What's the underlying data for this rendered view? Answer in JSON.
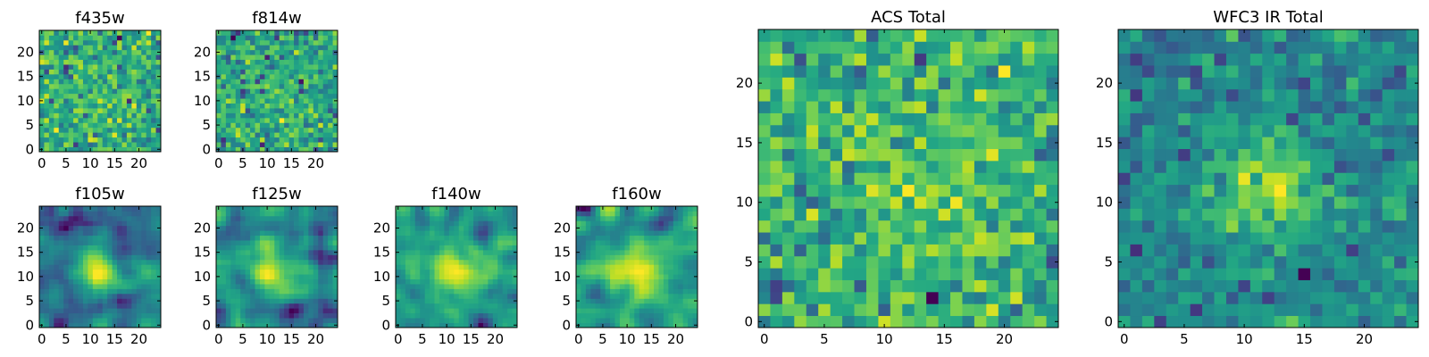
{
  "chart_data": [
    {
      "type": "heatmap",
      "title": "f435w",
      "colormap": "viridis",
      "grid_size": 25,
      "xticks": [
        "0",
        "5",
        "10",
        "15",
        "20"
      ],
      "yticks": [
        "0",
        "5",
        "10",
        "15",
        "20"
      ],
      "xlim": [
        0,
        25
      ],
      "ylim": [
        0,
        25
      ],
      "grid": false,
      "texture": "noise",
      "peak_strength": 0.1,
      "seed": 11
    },
    {
      "type": "heatmap",
      "title": "f814w",
      "colormap": "viridis",
      "grid_size": 25,
      "xticks": [
        "0",
        "5",
        "10",
        "15",
        "20"
      ],
      "yticks": [
        "0",
        "5",
        "10",
        "15",
        "20"
      ],
      "xlim": [
        0,
        25
      ],
      "ylim": [
        0,
        25
      ],
      "grid": false,
      "texture": "noise",
      "peak_strength": 0.1,
      "seed": 23
    },
    {
      "type": "heatmap",
      "title": "f105w",
      "colormap": "viridis",
      "grid_size": 25,
      "xticks": [
        "0",
        "5",
        "10",
        "15",
        "20"
      ],
      "yticks": [
        "0",
        "5",
        "10",
        "15",
        "20"
      ],
      "xlim": [
        0,
        25
      ],
      "ylim": [
        0,
        25
      ],
      "grid": false,
      "texture": "smooth",
      "peak_strength": 0.45,
      "seed": 37
    },
    {
      "type": "heatmap",
      "title": "f125w",
      "colormap": "viridis",
      "grid_size": 25,
      "xticks": [
        "0",
        "5",
        "10",
        "15",
        "20"
      ],
      "yticks": [
        "0",
        "5",
        "10",
        "15",
        "20"
      ],
      "xlim": [
        0,
        25
      ],
      "ylim": [
        0,
        25
      ],
      "grid": false,
      "texture": "smooth",
      "peak_strength": 0.45,
      "seed": 41
    },
    {
      "type": "heatmap",
      "title": "f140w",
      "colormap": "viridis",
      "grid_size": 25,
      "xticks": [
        "0",
        "5",
        "10",
        "15",
        "20"
      ],
      "yticks": [
        "0",
        "5",
        "10",
        "15",
        "20"
      ],
      "xlim": [
        0,
        25
      ],
      "ylim": [
        0,
        25
      ],
      "grid": false,
      "texture": "smooth",
      "peak_strength": 0.45,
      "seed": 53
    },
    {
      "type": "heatmap",
      "title": "f160w",
      "colormap": "viridis",
      "grid_size": 25,
      "xticks": [
        "0",
        "5",
        "10",
        "15",
        "20"
      ],
      "yticks": [
        "0",
        "5",
        "10",
        "15",
        "20"
      ],
      "xlim": [
        0,
        25
      ],
      "ylim": [
        0,
        25
      ],
      "grid": false,
      "texture": "smooth",
      "peak_strength": 0.45,
      "seed": 67
    },
    {
      "type": "heatmap",
      "title": "ACS Total",
      "colormap": "viridis",
      "grid_size": 25,
      "xticks": [
        "0",
        "5",
        "10",
        "15",
        "20"
      ],
      "yticks": [
        "0",
        "5",
        "10",
        "15",
        "20"
      ],
      "xlim": [
        0,
        25
      ],
      "ylim": [
        0,
        25
      ],
      "grid": false,
      "texture": "noise",
      "peak_strength": 0.2,
      "seed": 79
    },
    {
      "type": "heatmap",
      "title": "WFC3 IR Total",
      "colormap": "viridis",
      "grid_size": 25,
      "xticks": [
        "0",
        "5",
        "10",
        "15",
        "20"
      ],
      "yticks": [
        "0",
        "5",
        "10",
        "15",
        "20"
      ],
      "xlim": [
        0,
        25
      ],
      "ylim": [
        0,
        25
      ],
      "grid": false,
      "texture": "noise",
      "peak_strength": 0.6,
      "seed": 97
    }
  ]
}
